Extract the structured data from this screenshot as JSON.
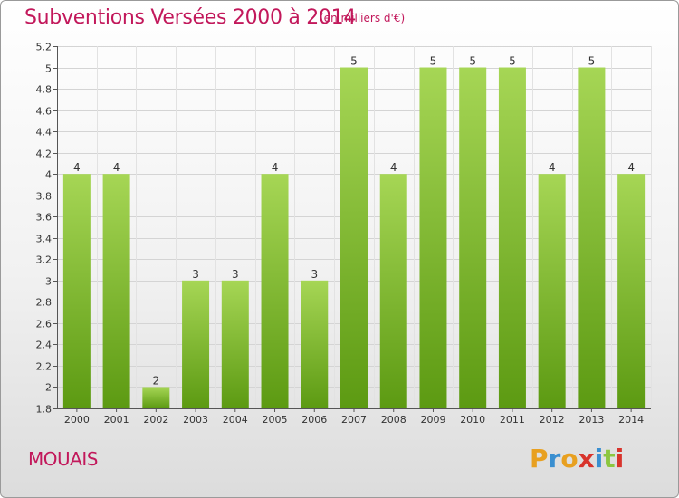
{
  "header": {
    "title": "Subventions Versées 2000 à 2014",
    "subtitle": "(en milliers d'€)"
  },
  "footer": {
    "commune": "MOUAIS",
    "logo": "Proxiti"
  },
  "colors": {
    "title": "#c2185b",
    "bar_light": "#a6d655",
    "bar_dark": "#5c9a12",
    "logo_letters": [
      "#e8a020",
      "#3a8fd0",
      "#e8a020",
      "#d8342c",
      "#3a8fd0",
      "#8cc63f",
      "#d8342c"
    ]
  },
  "chart_data": {
    "type": "bar",
    "title": "Subventions Versées 2000 à 2014",
    "categories": [
      "2000",
      "2001",
      "2002",
      "2003",
      "2004",
      "2005",
      "2006",
      "2007",
      "2008",
      "2009",
      "2010",
      "2011",
      "2012",
      "2013",
      "2014"
    ],
    "values": [
      4.0,
      4.0,
      2.0,
      3.0,
      3.0,
      4.0,
      3.0,
      5.0,
      4.0,
      5.0,
      5.0,
      5.0,
      4.0,
      5.0,
      4.0
    ],
    "value_labels": [
      "4",
      "4",
      "2",
      "3",
      "3",
      "4",
      "3",
      "5",
      "4",
      "5",
      "5",
      "5",
      "4",
      "5",
      "4"
    ],
    "ylim": [
      1.8,
      5.2
    ],
    "yticks": [
      1.8,
      2,
      2.2,
      2.4,
      2.6,
      2.8,
      3,
      3.2,
      3.4,
      3.6,
      3.8,
      4,
      4.2,
      4.4,
      4.6,
      4.8,
      5,
      5.2
    ],
    "ytick_labels": [
      "1.8",
      "2",
      "2.2",
      "2.4",
      "2.6",
      "2.8",
      "3",
      "3.2",
      "3.4",
      "3.6",
      "3.8",
      "4",
      "4.2",
      "4.4",
      "4.6",
      "4.8",
      "5",
      "5.2"
    ],
    "grid": true,
    "xlabel": "",
    "ylabel": ""
  }
}
